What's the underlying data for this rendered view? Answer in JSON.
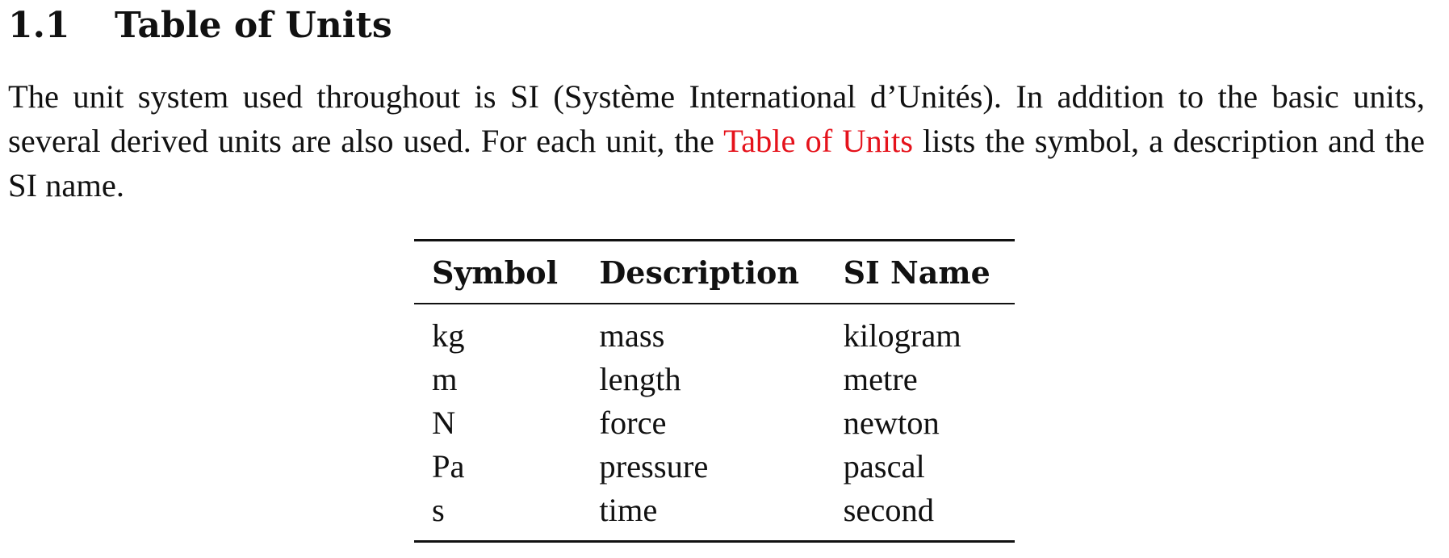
{
  "section": {
    "number": "1.1",
    "title": "Table of Units"
  },
  "intro": {
    "part1": "The unit system used throughout is SI (Système International d’Unités). In addition to the basic units, several derived units are also used. For each unit, the ",
    "link_text": "Table of Units",
    "part2": " lists the symbol, a description and the SI name."
  },
  "table": {
    "headers": [
      "Symbol",
      "Description",
      "SI Name"
    ],
    "rows": [
      [
        "kg",
        "mass",
        "kilogram"
      ],
      [
        "m",
        "length",
        "metre"
      ],
      [
        "N",
        "force",
        "newton"
      ],
      [
        "Pa",
        "pressure",
        "pascal"
      ],
      [
        "s",
        "time",
        "second"
      ]
    ]
  },
  "colors": {
    "link": "#e5121b",
    "text": "#111111"
  }
}
